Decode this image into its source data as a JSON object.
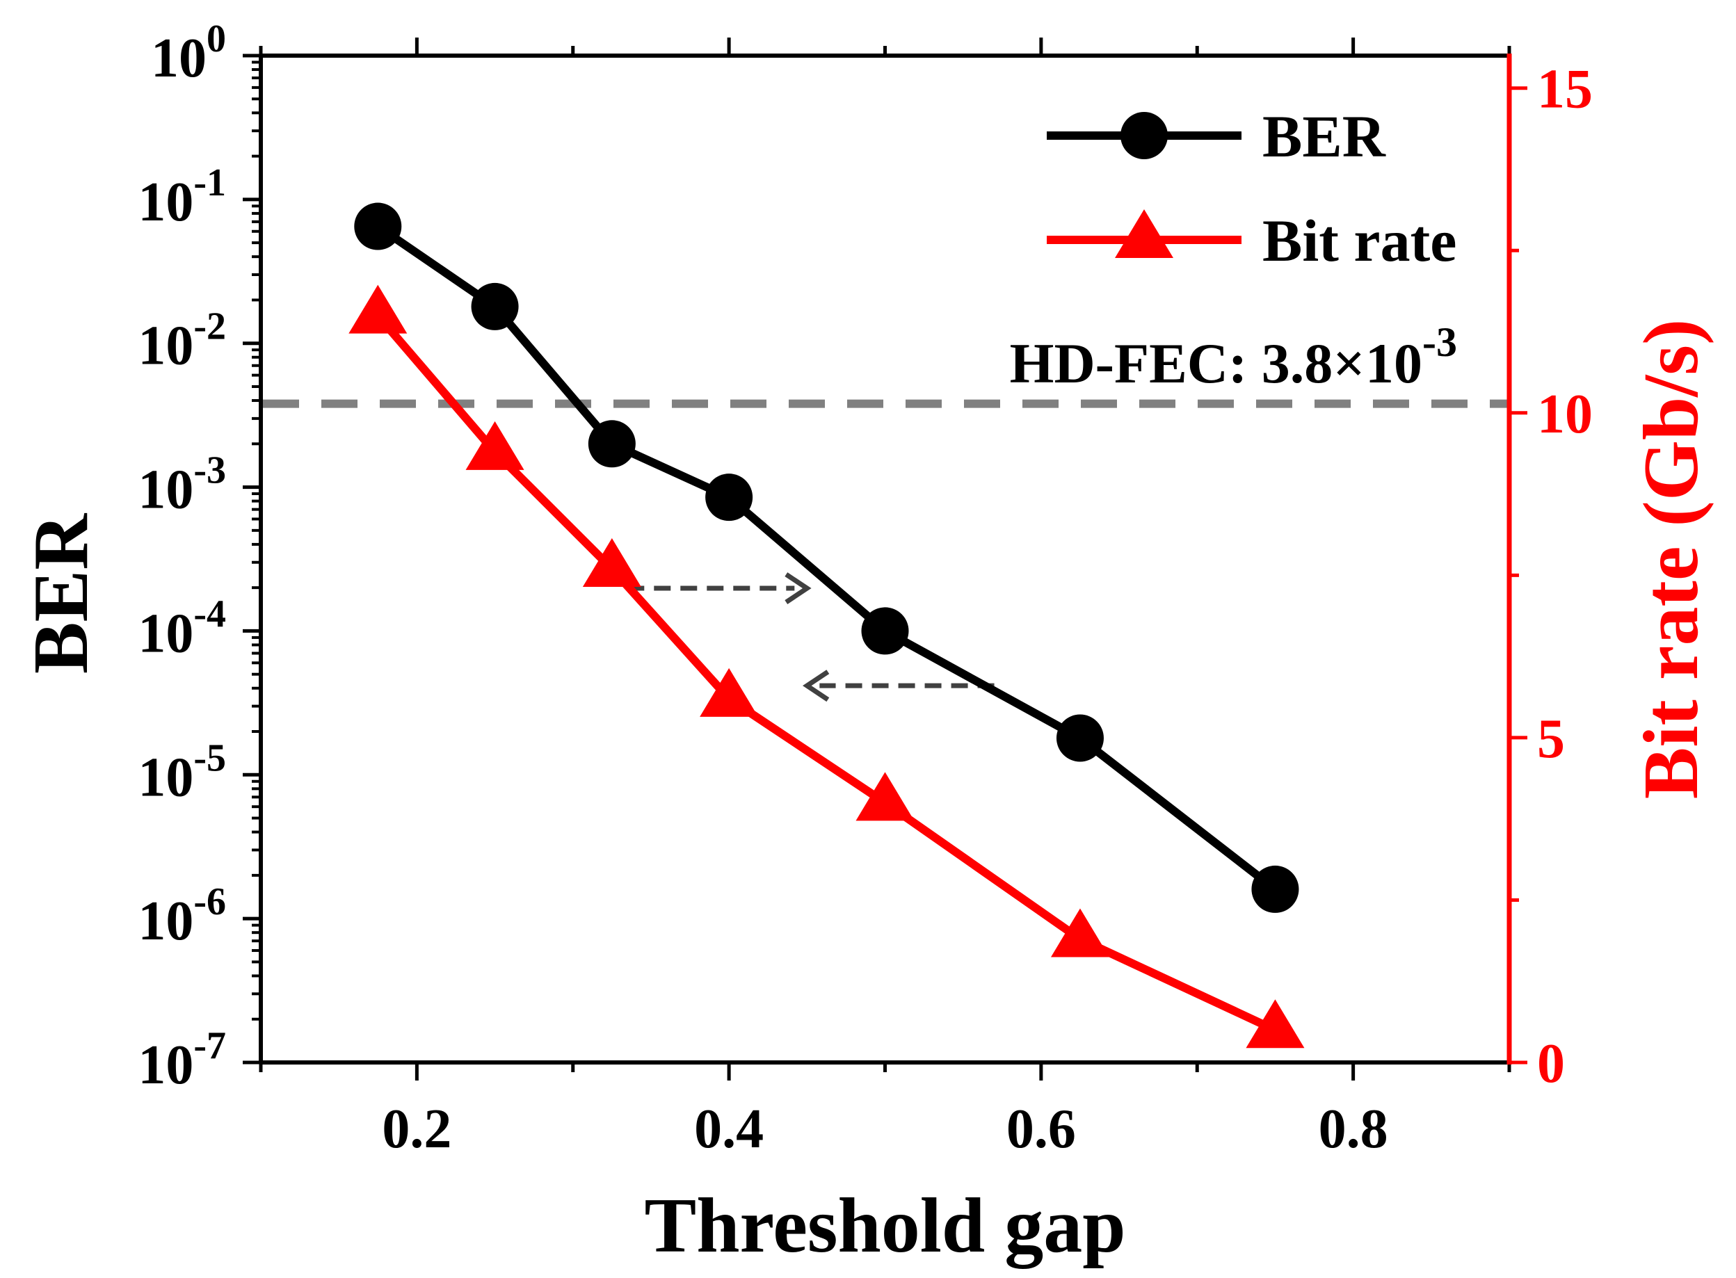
{
  "chart_data": {
    "type": "line",
    "x": [
      0.175,
      0.25,
      0.325,
      0.4,
      0.5,
      0.625,
      0.75
    ],
    "xlabel": "Threshold gap",
    "xlim": [
      0.1,
      0.9
    ],
    "xticks": [
      "0.2",
      "0.4",
      "0.6",
      "0.8"
    ],
    "xtick_values": [
      0.2,
      0.4,
      0.6,
      0.8
    ],
    "ylabel_left": "BER",
    "ylabel_right": "Bit rate (Gb/s)",
    "yscale_left": "log",
    "ylim_left_exponent": [
      -7,
      0
    ],
    "yticks_left": [
      {
        "base": "10",
        "exp": "0"
      },
      {
        "base": "10",
        "exp": "-1"
      },
      {
        "base": "10",
        "exp": "-2"
      },
      {
        "base": "10",
        "exp": "-3"
      },
      {
        "base": "10",
        "exp": "-4"
      },
      {
        "base": "10",
        "exp": "-5"
      },
      {
        "base": "10",
        "exp": "-6"
      },
      {
        "base": "10",
        "exp": "-7"
      }
    ],
    "ylim_right": [
      0,
      15.5
    ],
    "yticks_right": [
      "0",
      "5",
      "10",
      "15"
    ],
    "ytick_right_values": [
      0,
      5,
      10,
      15
    ],
    "series": [
      {
        "name": "BER",
        "axis": "left",
        "color": "#000000",
        "marker": "circle",
        "values": [
          0.065,
          0.018,
          0.002,
          0.00085,
          0.0001,
          1.8e-05,
          1.6e-06
        ]
      },
      {
        "name": "Bit rate",
        "axis": "right",
        "color": "#ff0000",
        "marker": "triangle",
        "values": [
          11.5,
          9.4,
          7.6,
          5.6,
          4.0,
          1.9,
          0.5
        ]
      }
    ],
    "reference_line": {
      "label_prefix": "HD-FEC: 3.8×10",
      "label_exp": "-3",
      "value": 0.0038,
      "color": "#808080",
      "style": "dashed"
    },
    "annotations": [
      {
        "type": "arrow",
        "direction": "right",
        "from_x": 0.335,
        "to_x": 0.45,
        "at_bitrate": 7.3
      },
      {
        "type": "arrow",
        "direction": "left",
        "from_x": 0.57,
        "to_x": 0.45,
        "at_bitrate": 5.8
      }
    ],
    "legend_position": "top-right"
  }
}
